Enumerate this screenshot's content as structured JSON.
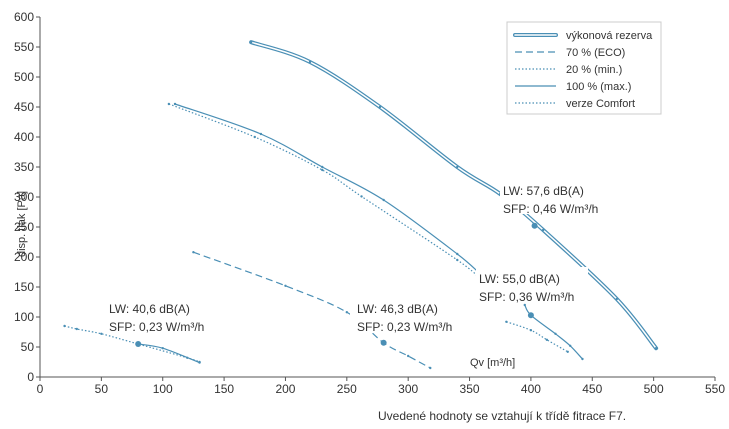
{
  "chart_data": {
    "type": "line",
    "xlabel": "Qv [m³/h]",
    "ylabel": "disp. tlak [Pa]",
    "xlim": [
      0,
      550
    ],
    "ylim": [
      0,
      600
    ],
    "x_ticks": [
      "0",
      "50",
      "100",
      "150",
      "200",
      "250",
      "300",
      "350",
      "400",
      "450",
      "500",
      "550"
    ],
    "y_ticks": [
      "0",
      "50",
      "100",
      "150",
      "200",
      "250",
      "300",
      "350",
      "400",
      "450",
      "500",
      "550",
      "600"
    ],
    "grid": false,
    "legend_position": "top-right",
    "legend": [
      {
        "label": "výkonová rezerva",
        "style": "double"
      },
      {
        "label": "70 % (ECO)",
        "style": "dashed"
      },
      {
        "label": "20 % (min.)",
        "style": "dotted"
      },
      {
        "label": "100 % (max.)",
        "style": "solid"
      },
      {
        "label": "verze Comfort",
        "style": "dotted"
      }
    ],
    "series": [
      {
        "style": "double",
        "points": [
          [
            172,
            558
          ],
          [
            220,
            525
          ],
          [
            277,
            450
          ],
          [
            340,
            350
          ],
          [
            375,
            305
          ],
          [
            410,
            245
          ],
          [
            470,
            130
          ],
          [
            502,
            48
          ]
        ]
      },
      {
        "style": "solid",
        "points": [
          [
            110,
            455
          ],
          [
            180,
            405
          ],
          [
            230,
            350
          ],
          [
            280,
            295
          ],
          [
            340,
            205
          ],
          [
            360,
            170
          ],
          [
            375,
            150
          ]
        ]
      },
      {
        "style": "dotted",
        "points": [
          [
            105,
            455
          ],
          [
            175,
            400
          ],
          [
            230,
            345
          ],
          [
            262,
            301
          ],
          [
            340,
            195
          ],
          [
            360,
            162
          ],
          [
            372,
            147
          ]
        ]
      },
      {
        "style": "solid",
        "points": [
          [
            395,
            120
          ],
          [
            400,
            103
          ],
          [
            420,
            72
          ],
          [
            432,
            52
          ],
          [
            442,
            30
          ]
        ]
      },
      {
        "style": "dotted",
        "points": [
          [
            380,
            92
          ],
          [
            400,
            78
          ],
          [
            413,
            62
          ],
          [
            430,
            42
          ]
        ]
      },
      {
        "style": "dashed",
        "points": [
          [
            125,
            208
          ],
          [
            200,
            152
          ],
          [
            250,
            108
          ],
          [
            280,
            57
          ],
          [
            300,
            35
          ],
          [
            318,
            15
          ]
        ]
      },
      {
        "style": "dotted",
        "points": [
          [
            20,
            85
          ],
          [
            30,
            80
          ],
          [
            50,
            72
          ],
          [
            80,
            55
          ],
          [
            120,
            32
          ],
          [
            130,
            25
          ]
        ]
      },
      {
        "style": "solid",
        "points": [
          [
            80,
            55
          ],
          [
            100,
            48
          ],
          [
            130,
            24
          ]
        ]
      }
    ],
    "operating_points": [
      {
        "x": 80,
        "y": 55
      },
      {
        "x": 280,
        "y": 57
      },
      {
        "x": 400,
        "y": 103
      },
      {
        "x": 403,
        "y": 252
      }
    ],
    "annotations": [
      {
        "lw": "LW:   40,6 dB(A)",
        "sfp": "SFP:  0,23 W/m³/h"
      },
      {
        "lw": "LW:   46,3 dB(A)",
        "sfp": "SFP:  0,23 W/m³/h"
      },
      {
        "lw": "LW:   55,0 dB(A)",
        "sfp": "SFP: 0,36 W/m³/h"
      },
      {
        "lw": "LW:   57,6 dB(A)",
        "sfp": "SFP: 0,46 W/m³/h"
      }
    ],
    "colors": {
      "line": "#4a8fb5",
      "axis": "#555555"
    }
  },
  "footnote": "Uvedené hodnoty se vztahují k třídě fitrace F7."
}
